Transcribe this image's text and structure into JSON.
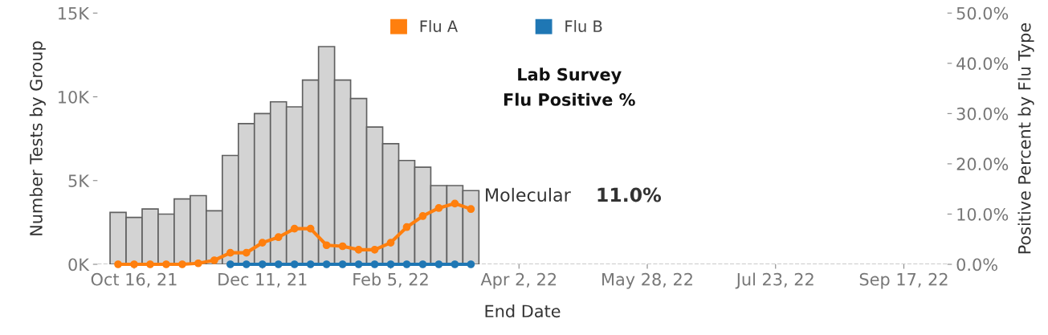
{
  "chart_data": {
    "type": "bar",
    "xlabel": "End Date",
    "ylabel": "Number Tests by Group",
    "y2label": "Positive Percent by Flu Type",
    "x": [
      "2021-10-09",
      "2021-10-16",
      "2021-10-23",
      "2021-10-30",
      "2021-11-06",
      "2021-11-13",
      "2021-11-20",
      "2021-11-27",
      "2021-12-04",
      "2021-12-11",
      "2021-12-18",
      "2021-12-25",
      "2022-01-01",
      "2022-01-08",
      "2022-01-15",
      "2022-01-22",
      "2022-01-29",
      "2022-02-05",
      "2022-02-12",
      "2022-02-19",
      "2022-02-26",
      "2022-03-05",
      "2022-03-12"
    ],
    "series": [
      {
        "color": "#d3d3d3",
        "values": [
          3100,
          2800,
          3300,
          3000,
          3900,
          4100,
          3200,
          6500,
          8400,
          9000,
          9700,
          9400,
          11000,
          13000,
          11000,
          9900,
          8200,
          7200,
          6200,
          5800,
          4700,
          4700,
          4400
        ]
      },
      {
        "type": "line",
        "name": "Flu A",
        "axis": "y2",
        "color": "#ff7f0e",
        "values": [
          0,
          0,
          0,
          0,
          0,
          0.2,
          0.8,
          2.3,
          2.3,
          4.3,
          5.4,
          7.1,
          7.1,
          3.8,
          3.6,
          2.9,
          2.9,
          4.3,
          7.4,
          9.6,
          11.2,
          12.1,
          11.0
        ]
      },
      {
        "type": "line",
        "name": "Flu B",
        "axis": "y2",
        "color": "#1f77b4",
        "values": [
          null,
          null,
          null,
          null,
          null,
          null,
          null,
          0,
          0,
          0,
          0,
          0,
          0,
          0,
          0,
          0,
          0,
          0,
          0,
          0,
          0,
          0,
          0
        ]
      }
    ],
    "xlim": [
      "2021-09-30",
      "2022-10-06"
    ],
    "xticks": [
      {
        "value": "2021-10-16",
        "label": "Oct 16, 21"
      },
      {
        "value": "2021-12-11",
        "label": "Dec 11, 21"
      },
      {
        "value": "2022-02-05",
        "label": "Feb 5, 22"
      },
      {
        "value": "2022-04-02",
        "label": "Apr 2, 22"
      },
      {
        "value": "2022-05-28",
        "label": "May 28, 22"
      },
      {
        "value": "2022-07-23",
        "label": "Jul 23, 22"
      },
      {
        "value": "2022-09-17",
        "label": "Sep 17, 22"
      }
    ],
    "ylim": [
      0,
      15000
    ],
    "yticks": [
      {
        "value": 0,
        "label": "0K"
      },
      {
        "value": 5000,
        "label": "5K"
      },
      {
        "value": 10000,
        "label": "10K"
      },
      {
        "value": 15000,
        "label": "15K"
      }
    ],
    "y2lim": [
      0,
      50
    ],
    "y2ticks": [
      {
        "value": 0,
        "label": "0.0%"
      },
      {
        "value": 10,
        "label": "10.0%"
      },
      {
        "value": 20,
        "label": "20.0%"
      },
      {
        "value": 30,
        "label": "30.0%"
      },
      {
        "value": 40,
        "label": "40.0%"
      },
      {
        "value": 50,
        "label": "50.0%"
      }
    ],
    "ref_lines": [
      {
        "axis": "y",
        "value": 0,
        "color": "#bbbbbb",
        "line_style": "dashed"
      }
    ],
    "annotations": [
      "Lab Survey\nFlu Positive %",
      "Molecular",
      "11.0%"
    ],
    "marker": "circle",
    "line_style": "solid",
    "grid": false,
    "legend": "top"
  }
}
